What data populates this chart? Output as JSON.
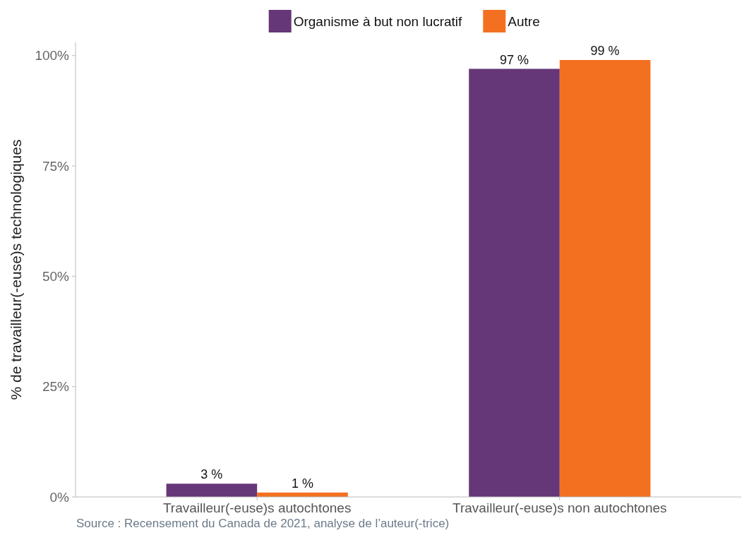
{
  "chart_data": {
    "type": "bar",
    "ylabel": "% de travailleur(-euse)s technologiques",
    "categories": [
      "Travailleur(-euse)s autochtones",
      "Travailleur(-euse)s non autochtones"
    ],
    "series": [
      {
        "name": "Organisme à but non lucratif",
        "color": "#663778",
        "values": [
          3,
          97
        ],
        "value_labels": [
          "3 %",
          "97 %"
        ]
      },
      {
        "name": "Autre",
        "color": "#f37021",
        "values": [
          1,
          99
        ],
        "value_labels": [
          "1 %",
          "99 %"
        ]
      }
    ],
    "ylim": [
      0,
      103
    ],
    "yticks": [
      {
        "value": 0,
        "label": "0%"
      },
      {
        "value": 25,
        "label": "25%"
      },
      {
        "value": 50,
        "label": "50%"
      },
      {
        "value": 75,
        "label": "75%"
      },
      {
        "value": 100,
        "label": "100%"
      }
    ],
    "grid": false,
    "legend": "top",
    "annotations": [
      "Source : Recensement du Canada de 2021, analyse de l’auteur(-trice)"
    ]
  }
}
